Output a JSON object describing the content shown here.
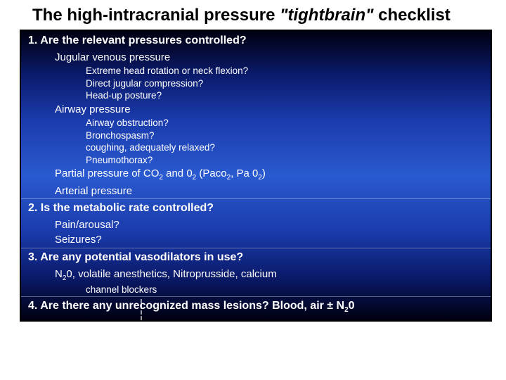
{
  "title_prefix": "The high-intracranial pressure ",
  "title_quoted": "\"tightbrain\"",
  "title_suffix": " checklist",
  "colors": {
    "text_title": "#000000",
    "text_body": "#ffffff",
    "border": "#000000",
    "bg_gradient_stops": [
      "#000010",
      "#0a1a6a",
      "#1a3aaa",
      "#2a5ad0",
      "#1a3aaa",
      "#0a1a6a",
      "#000010"
    ]
  },
  "q1": {
    "heading": "1. Are the relevant pressures controlled?",
    "a": {
      "label": "Jugular venous pressure",
      "items": [
        "Extreme head rotation or neck flexion?",
        "Direct jugular compression?",
        "Head-up posture?"
      ]
    },
    "b": {
      "label": "Airway pressure",
      "items": [
        "Airway obstruction?",
        "Bronchospasm?",
        "coughing, adequately relaxed?",
        "Pneumothorax?"
      ]
    },
    "c_html": "Partial pressure of CO<sub class='sub'>2</sub> and 0<sub class='sub'>2</sub> (Paco<sub class='sub'>2</sub>, Pa 0<sub class='sub'>2</sub>)",
    "d": "Arterial pressure"
  },
  "q2": {
    "heading": "2. Is the metabolic rate controlled?",
    "items": [
      "Pain/arousal?",
      "Seizures?"
    ]
  },
  "q3": {
    "heading": "3. Are any potential vasodilators in use?",
    "line_html": "N<sub class='sub'>2</sub>0, volatile anesthetics, Nitroprusside, calcium",
    "line2": "channel blockers"
  },
  "q4": {
    "heading_html": "4. Are there any unrecognized mass lesions? <span class='same-line'>Blood, air ± N<sub class=\"sub\">2</sub>0</span>"
  }
}
